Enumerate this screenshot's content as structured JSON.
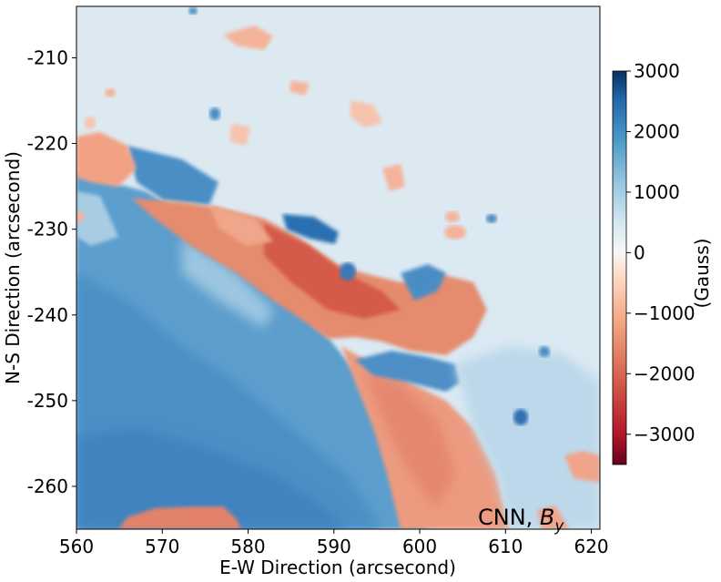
{
  "chart_data": {
    "type": "heatmap",
    "xlabel": "E-W Direction (arcsecond)",
    "ylabel": "N-S Direction (arcsecond)",
    "xlim": [
      560,
      621
    ],
    "ylim": [
      -265,
      -204
    ],
    "xticks": [
      560,
      570,
      580,
      590,
      600,
      610,
      620
    ],
    "xtick_labels": [
      "560",
      "570",
      "580",
      "590",
      "600",
      "610",
      "620"
    ],
    "yticks": [
      -210,
      -220,
      -230,
      -240,
      -250,
      -260
    ],
    "ytick_labels": [
      "-210",
      "-220",
      "-230",
      "-240",
      "-250",
      "-260"
    ],
    "annotation": {
      "text": "CNN, ",
      "symbol": "B",
      "subscript": "y"
    },
    "colorbar": {
      "label": "(Gauss)",
      "range": [
        -3500,
        3000
      ],
      "ticks": [
        3000,
        2000,
        1000,
        0,
        -1000,
        -2000,
        -3000
      ],
      "tick_labels": [
        "3000",
        "2000",
        "1000",
        "0",
        "−1000",
        "−2000",
        "−3000"
      ],
      "colormap": "RdBu",
      "stops": [
        "#67001f",
        "#b2182b",
        "#d6604d",
        "#f4a582",
        "#fddbc7",
        "#f7f7f7",
        "#d1e5f0",
        "#92c5de",
        "#4393c3",
        "#2166ac",
        "#053061"
      ]
    },
    "grid": false
  }
}
